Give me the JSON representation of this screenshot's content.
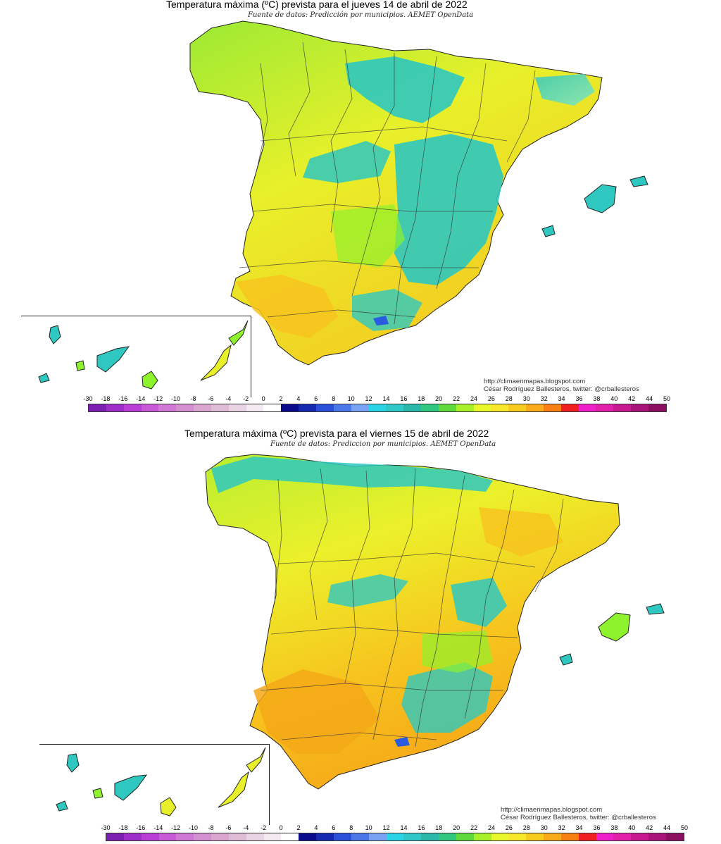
{
  "maps": [
    {
      "title": "Temperatura máxima (ºC) prevista para el jueves 14 de abril de 2022",
      "subtitle": "Fuente de datos: Predicción por municipios. AEMET OpenData",
      "credit_url": "http://climaenmapas.blogspot.com",
      "credit_author": "César Rodríguez Ballesteros, twitter: @crballesteros",
      "dominant_palette": [
        "#2ec8c0",
        "#8ef22c",
        "#e8f02a",
        "#f7c41e",
        "#2a5be0"
      ]
    },
    {
      "title": "Temperatura máxima (ºC) prevista para el viernes 15 de abril de 2022",
      "subtitle": "Fuente de datos: Prediccion por municipios. AEMET OpenData",
      "credit_url": "http://climaenmapas.blogspot.com",
      "credit_author": "César Rodríguez Ballesteros, twitter: @crballesteros",
      "dominant_palette": [
        "#f7c41e",
        "#e8f02a",
        "#8ef22c",
        "#2ec8c0",
        "#2a5be0"
      ]
    }
  ],
  "legend": {
    "labels": [
      "-30",
      "-18",
      "-16",
      "-14",
      "-12",
      "-10",
      "-8",
      "-6",
      "-4",
      "-2",
      "0",
      "2",
      "4",
      "6",
      "8",
      "10",
      "12",
      "14",
      "16",
      "18",
      "20",
      "22",
      "24",
      "26",
      "28",
      "30",
      "32",
      "34",
      "36",
      "38",
      "40",
      "42",
      "44",
      "50"
    ],
    "colors": [
      "#7a1fb0",
      "#9d2fc8",
      "#b83ed6",
      "#c85ad8",
      "#cf78d4",
      "#d38fcf",
      "#d9a6cf",
      "#dfbcd6",
      "#e8d4e2",
      "#f2eaf0",
      "#ffffff",
      "#0a0a8c",
      "#1428b0",
      "#2a4fd8",
      "#4a78e8",
      "#7aa2f2",
      "#28d4e6",
      "#2ec8c8",
      "#2ab8a8",
      "#30c880",
      "#5ed83a",
      "#a8f028",
      "#e8f82a",
      "#f8e82a",
      "#f8cc1e",
      "#f8aa18",
      "#f88010",
      "#f02020",
      "#f020c8",
      "#e020a8",
      "#c81890",
      "#a81478",
      "#8c1060"
    ]
  }
}
